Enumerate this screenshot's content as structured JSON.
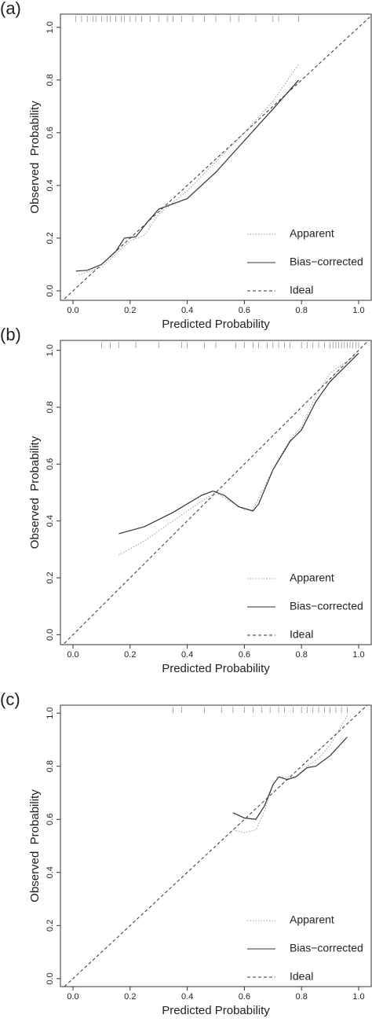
{
  "chart_data": [
    {
      "type": "line",
      "label": "(a)",
      "xlabel": "Predicted Probability",
      "ylabel": "Observed  Probability",
      "xlim": [
        -0.044,
        1.044
      ],
      "ylim": [
        -0.036,
        1.05
      ],
      "xticks": [
        {
          "value": 0,
          "label": "0.0"
        },
        0.2,
        0.4,
        0.6,
        0.8,
        {
          "value": 1,
          "label": "1.0"
        }
      ],
      "yticks": [
        {
          "value": 0,
          "label": "0.0"
        },
        0.2,
        0.4,
        0.6,
        0.8,
        {
          "value": 1,
          "label": "1.0"
        }
      ],
      "legend": "bottom-right",
      "rug": [
        0.01,
        0.03,
        0.05,
        0.07,
        0.08,
        0.1,
        0.12,
        0.13,
        0.15,
        0.17,
        0.18,
        0.2,
        0.22,
        0.24,
        0.27,
        0.3,
        0.33,
        0.35,
        0.38,
        0.42,
        0.46,
        0.5,
        0.55,
        0.58,
        0.64,
        0.7,
        0.72,
        0.79
      ],
      "series": [
        {
          "name": "Apparent",
          "color": "#9a9a9a",
          "style": "dotted",
          "x": [
            0.02,
            0.1,
            0.15,
            0.2,
            0.25,
            0.3,
            0.4,
            0.5,
            0.6,
            0.7,
            0.79
          ],
          "values": [
            0.06,
            0.09,
            0.14,
            0.19,
            0.21,
            0.29,
            0.38,
            0.49,
            0.6,
            0.72,
            0.86
          ]
        },
        {
          "name": "Bias−corrected",
          "color": "#333333",
          "style": "solid",
          "x": [
            0.01,
            0.05,
            0.1,
            0.15,
            0.18,
            0.22,
            0.26,
            0.3,
            0.35,
            0.4,
            0.5,
            0.6,
            0.7,
            0.79
          ],
          "values": [
            0.075,
            0.078,
            0.1,
            0.15,
            0.2,
            0.205,
            0.26,
            0.31,
            0.33,
            0.35,
            0.45,
            0.57,
            0.69,
            0.8
          ]
        },
        {
          "name": "Ideal",
          "color": "#333333",
          "style": "dashed",
          "x": [
            -0.044,
            1.044
          ],
          "values": [
            -0.044,
            1.044
          ]
        }
      ]
    },
    {
      "type": "line",
      "label": "(b)",
      "xlabel": "Predicted Probability",
      "ylabel": "Observed  Probability",
      "xlim": [
        -0.044,
        1.044
      ],
      "ylim": [
        -0.035,
        1.035
      ],
      "xticks": [
        {
          "value": 0,
          "label": "0.0"
        },
        0.2,
        0.4,
        0.6,
        0.8,
        {
          "value": 1,
          "label": "1.0"
        }
      ],
      "yticks": [
        {
          "value": 0,
          "label": "0.0"
        },
        0.2,
        0.4,
        0.6,
        0.8,
        {
          "value": 1,
          "label": "1.0"
        }
      ],
      "legend": "bottom-right",
      "rug": [
        0.1,
        0.13,
        0.16,
        0.22,
        0.3,
        0.38,
        0.4,
        0.46,
        0.5,
        0.57,
        0.6,
        0.63,
        0.65,
        0.68,
        0.7,
        0.72,
        0.74,
        0.76,
        0.8,
        0.82,
        0.84,
        0.86,
        0.88,
        0.9,
        0.91,
        0.92,
        0.93,
        0.94,
        0.95,
        0.96,
        0.97,
        0.98,
        0.99,
        1.0
      ],
      "series": [
        {
          "name": "Apparent",
          "color": "#9a9a9a",
          "style": "dotted",
          "x": [
            0.16,
            0.25,
            0.35,
            0.45,
            0.5,
            0.55,
            0.6,
            0.63,
            0.67,
            0.72,
            0.77,
            0.8,
            0.85,
            0.9,
            1.0
          ],
          "values": [
            0.28,
            0.33,
            0.4,
            0.47,
            0.5,
            0.47,
            0.44,
            0.44,
            0.52,
            0.62,
            0.7,
            0.73,
            0.84,
            0.92,
            0.99
          ]
        },
        {
          "name": "Bias−corrected",
          "color": "#333333",
          "style": "solid",
          "x": [
            0.16,
            0.25,
            0.35,
            0.45,
            0.49,
            0.53,
            0.58,
            0.63,
            0.65,
            0.7,
            0.76,
            0.8,
            0.85,
            0.9,
            0.96,
            1.0
          ],
          "values": [
            0.355,
            0.38,
            0.43,
            0.49,
            0.505,
            0.49,
            0.45,
            0.435,
            0.46,
            0.58,
            0.68,
            0.72,
            0.82,
            0.89,
            0.95,
            0.99
          ]
        },
        {
          "name": "Ideal",
          "color": "#333333",
          "style": "dashed",
          "x": [
            -0.044,
            1.044
          ],
          "values": [
            -0.044,
            1.044
          ]
        }
      ]
    },
    {
      "type": "line",
      "label": "(c)",
      "xlabel": "Predicted Probability",
      "ylabel": "Observed  Probability",
      "xlim": [
        -0.044,
        1.044
      ],
      "ylim": [
        -0.03,
        1.03
      ],
      "xticks": [
        {
          "value": 0,
          "label": "0.0"
        },
        0.2,
        0.4,
        0.6,
        0.8,
        {
          "value": 1,
          "label": "1.0"
        }
      ],
      "yticks": [
        {
          "value": 0,
          "label": "0.0"
        },
        0.2,
        0.4,
        0.6,
        0.8,
        {
          "value": 1,
          "label": "1.0"
        }
      ],
      "legend": "bottom-right",
      "rug": [
        0.35,
        0.38,
        0.46,
        0.52,
        0.56,
        0.6,
        0.63,
        0.66,
        0.69,
        0.72,
        0.74,
        0.77,
        0.8,
        0.82,
        0.84,
        0.86,
        0.88,
        0.9,
        0.92,
        0.94,
        0.96
      ],
      "series": [
        {
          "name": "Apparent",
          "color": "#9a9a9a",
          "style": "dotted",
          "x": [
            0.56,
            0.6,
            0.64,
            0.67,
            0.7,
            0.72,
            0.75,
            0.78,
            0.82,
            0.86,
            0.9,
            0.96
          ],
          "values": [
            0.56,
            0.55,
            0.56,
            0.63,
            0.73,
            0.76,
            0.76,
            0.76,
            0.8,
            0.83,
            0.88,
            0.99
          ]
        },
        {
          "name": "Bias−corrected",
          "color": "#333333",
          "style": "solid",
          "x": [
            0.56,
            0.6,
            0.64,
            0.67,
            0.7,
            0.72,
            0.75,
            0.78,
            0.82,
            0.85,
            0.9,
            0.96
          ],
          "values": [
            0.625,
            0.605,
            0.6,
            0.65,
            0.73,
            0.76,
            0.75,
            0.76,
            0.795,
            0.8,
            0.84,
            0.91
          ]
        },
        {
          "name": "Ideal",
          "color": "#333333",
          "style": "dashed",
          "x": [
            -0.044,
            1.044
          ],
          "values": [
            -0.044,
            1.044
          ]
        }
      ]
    }
  ]
}
